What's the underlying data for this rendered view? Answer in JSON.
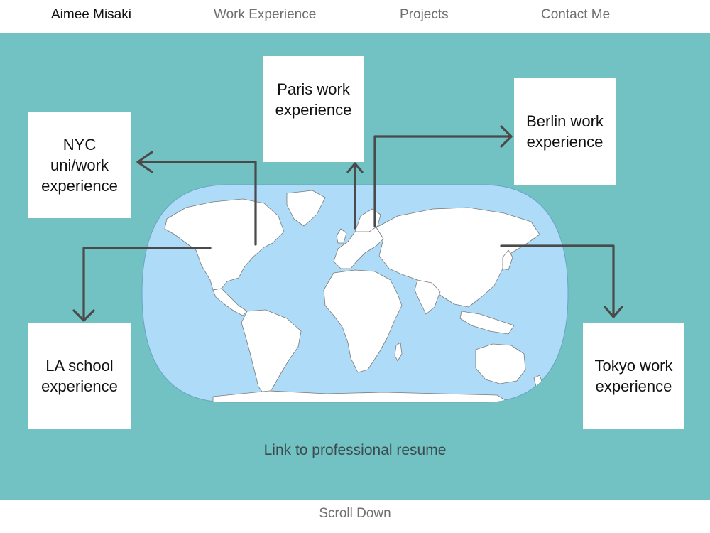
{
  "nav": {
    "brand": "Aimee Misaki",
    "items": [
      "Work Experience",
      "Projects",
      "Contact Me"
    ]
  },
  "cards": {
    "nyc": "NYC uni/work experience",
    "paris": "Paris work experience",
    "berlin": "Berlin work experience",
    "la": "LA school experience",
    "tokyo": "Tokyo work experience"
  },
  "resume_link": "Link to professional resume",
  "footer": {
    "scroll": "Scroll Down"
  },
  "colors": {
    "hero_bg": "#72c1c3",
    "ocean": "#aedcf8",
    "land": "#ffffff",
    "arrow": "#4a4a4a"
  }
}
